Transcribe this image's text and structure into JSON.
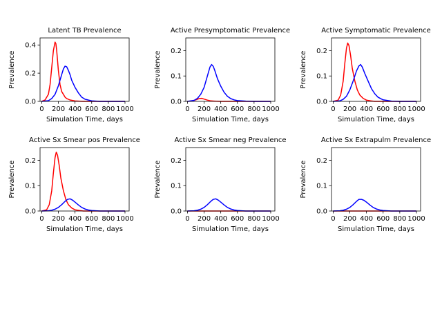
{
  "figure": {
    "background": "#ffffff"
  },
  "chart_data": [
    {
      "type": "line",
      "title": "Latent TB Prevalence",
      "xlabel": "Simulation Time, days",
      "ylabel": "Prevalence",
      "xlim": [
        -20,
        1050
      ],
      "ylim": [
        0,
        0.45
      ],
      "xticks": [
        0,
        200,
        400,
        600,
        800,
        1000
      ],
      "xtick_labels": [
        "0",
        "200",
        "400",
        "600",
        "800",
        "1000"
      ],
      "yticks": [
        0.0,
        0.2,
        0.4
      ],
      "ytick_labels": [
        "0.0",
        "0.2",
        "0.4"
      ],
      "grid": false,
      "series": [
        {
          "color": "#ff0000",
          "x": [
            0,
            40,
            80,
            100,
            120,
            140,
            160,
            170,
            180,
            200,
            220,
            240,
            260,
            280,
            300,
            340,
            400,
            500,
            600,
            800,
            1000
          ],
          "y": [
            0,
            0.01,
            0.05,
            0.12,
            0.24,
            0.36,
            0.42,
            0.41,
            0.36,
            0.22,
            0.12,
            0.07,
            0.05,
            0.03,
            0.02,
            0.01,
            0.003,
            0,
            0,
            0,
            0
          ]
        },
        {
          "color": "#0000ff",
          "x": [
            0,
            80,
            120,
            160,
            200,
            220,
            240,
            260,
            280,
            300,
            320,
            340,
            360,
            400,
            440,
            480,
            520,
            600,
            700,
            800,
            1000
          ],
          "y": [
            0,
            0.005,
            0.02,
            0.05,
            0.11,
            0.15,
            0.19,
            0.23,
            0.25,
            0.245,
            0.22,
            0.19,
            0.15,
            0.1,
            0.06,
            0.03,
            0.015,
            0.004,
            0,
            0,
            0
          ]
        }
      ]
    },
    {
      "type": "line",
      "title": "Active Presymptomatic Prevalence",
      "xlabel": "Simulation Time, days",
      "ylabel": "Prevalence",
      "xlim": [
        -20,
        1050
      ],
      "ylim": [
        0,
        0.25
      ],
      "xticks": [
        0,
        200,
        400,
        600,
        800,
        1000
      ],
      "xtick_labels": [
        "0",
        "200",
        "400",
        "600",
        "800",
        "1000"
      ],
      "yticks": [
        0.0,
        0.1,
        0.2
      ],
      "ytick_labels": [
        "0.0",
        "0.1",
        "0.2"
      ],
      "grid": false,
      "series": [
        {
          "color": "#ff0000",
          "x": [
            0,
            60,
            100,
            140,
            170,
            200,
            240,
            280,
            320,
            400,
            1000
          ],
          "y": [
            0,
            0.002,
            0.006,
            0.011,
            0.012,
            0.009,
            0.005,
            0.002,
            0.001,
            0,
            0
          ]
        },
        {
          "color": "#0000ff",
          "x": [
            0,
            80,
            120,
            160,
            200,
            240,
            270,
            290,
            310,
            330,
            360,
            400,
            440,
            480,
            520,
            560,
            600,
            700,
            800,
            1000
          ],
          "y": [
            0,
            0.004,
            0.012,
            0.028,
            0.055,
            0.1,
            0.135,
            0.145,
            0.138,
            0.12,
            0.09,
            0.06,
            0.036,
            0.02,
            0.011,
            0.006,
            0.003,
            0.001,
            0,
            0
          ]
        }
      ]
    },
    {
      "type": "line",
      "title": "Active Symptomatic Prevalence",
      "xlabel": "Simulation Time, days",
      "ylabel": "Prevalence",
      "xlim": [
        -20,
        1050
      ],
      "ylim": [
        0,
        0.25
      ],
      "xticks": [
        0,
        200,
        400,
        600,
        800,
        1000
      ],
      "xtick_labels": [
        "0",
        "200",
        "400",
        "600",
        "800",
        "1000"
      ],
      "yticks": [
        0.0,
        0.1,
        0.2
      ],
      "ytick_labels": [
        "0.0",
        "0.1",
        "0.2"
      ],
      "grid": false,
      "series": [
        {
          "color": "#ff0000",
          "x": [
            0,
            60,
            90,
            120,
            140,
            160,
            175,
            190,
            210,
            230,
            260,
            290,
            320,
            360,
            400,
            450,
            500,
            600,
            1000
          ],
          "y": [
            0,
            0.005,
            0.025,
            0.08,
            0.15,
            0.21,
            0.23,
            0.22,
            0.18,
            0.13,
            0.08,
            0.045,
            0.025,
            0.012,
            0.005,
            0.002,
            0,
            0,
            0
          ]
        },
        {
          "color": "#0000ff",
          "x": [
            0,
            80,
            120,
            160,
            200,
            240,
            280,
            310,
            330,
            350,
            380,
            420,
            460,
            500,
            540,
            600,
            700,
            800,
            1000
          ],
          "y": [
            0,
            0.002,
            0.008,
            0.02,
            0.045,
            0.08,
            0.12,
            0.14,
            0.145,
            0.135,
            0.11,
            0.08,
            0.05,
            0.03,
            0.016,
            0.006,
            0.001,
            0,
            0
          ]
        }
      ]
    },
    {
      "type": "line",
      "title": "Active Sx Smear pos Prevalence",
      "xlabel": "Simulation Time, days",
      "ylabel": "Prevalence",
      "xlim": [
        -20,
        1050
      ],
      "ylim": [
        0,
        0.25
      ],
      "xticks": [
        0,
        200,
        400,
        600,
        800,
        1000
      ],
      "xtick_labels": [
        "0",
        "200",
        "400",
        "600",
        "800",
        "1000"
      ],
      "yticks": [
        0.0,
        0.1,
        0.2
      ],
      "ytick_labels": [
        "0.0",
        "0.1",
        "0.2"
      ],
      "grid": false,
      "series": [
        {
          "color": "#ff0000",
          "x": [
            0,
            60,
            90,
            120,
            140,
            160,
            175,
            190,
            210,
            230,
            260,
            290,
            320,
            360,
            400,
            450,
            500,
            600,
            1000
          ],
          "y": [
            0,
            0.005,
            0.025,
            0.08,
            0.15,
            0.21,
            0.232,
            0.22,
            0.18,
            0.13,
            0.08,
            0.045,
            0.025,
            0.012,
            0.005,
            0.002,
            0,
            0,
            0
          ]
        },
        {
          "color": "#0000ff",
          "x": [
            0,
            80,
            120,
            160,
            200,
            240,
            280,
            310,
            340,
            370,
            400,
            440,
            480,
            520,
            560,
            600,
            700,
            800,
            1000
          ],
          "y": [
            0,
            0.001,
            0.003,
            0.007,
            0.014,
            0.025,
            0.038,
            0.046,
            0.048,
            0.043,
            0.035,
            0.024,
            0.014,
            0.008,
            0.004,
            0.002,
            0,
            0,
            0
          ]
        }
      ]
    },
    {
      "type": "line",
      "title": "Active Sx Smear neg Prevalence",
      "xlabel": "Simulation Time, days",
      "ylabel": "Prevalence",
      "xlim": [
        -20,
        1050
      ],
      "ylim": [
        0,
        0.25
      ],
      "xticks": [
        0,
        200,
        400,
        600,
        800,
        1000
      ],
      "xtick_labels": [
        "0",
        "200",
        "400",
        "600",
        "800",
        "1000"
      ],
      "yticks": [
        0.0,
        0.1,
        0.2
      ],
      "ytick_labels": [
        "0.0",
        "0.1",
        "0.2"
      ],
      "grid": false,
      "series": [
        {
          "color": "#ff0000",
          "x": [
            0,
            1000
          ],
          "y": [
            0,
            0
          ]
        },
        {
          "color": "#0000ff",
          "x": [
            0,
            80,
            120,
            160,
            200,
            240,
            280,
            310,
            340,
            370,
            400,
            440,
            480,
            520,
            560,
            600,
            700,
            800,
            1000
          ],
          "y": [
            0,
            0.001,
            0.003,
            0.007,
            0.014,
            0.025,
            0.038,
            0.046,
            0.048,
            0.043,
            0.035,
            0.024,
            0.014,
            0.008,
            0.004,
            0.002,
            0,
            0,
            0
          ]
        }
      ]
    },
    {
      "type": "line",
      "title": "Active Sx Extrapulm Prevalence",
      "xlabel": "Simulation Time, days",
      "ylabel": "Prevalence",
      "xlim": [
        -20,
        1050
      ],
      "ylim": [
        0,
        0.25
      ],
      "xticks": [
        0,
        200,
        400,
        600,
        800,
        1000
      ],
      "xtick_labels": [
        "0",
        "200",
        "400",
        "600",
        "800",
        "1000"
      ],
      "yticks": [
        0.0,
        0.1,
        0.2
      ],
      "ytick_labels": [
        "0.0",
        "0.1",
        "0.2"
      ],
      "grid": false,
      "series": [
        {
          "color": "#ff0000",
          "x": [
            0,
            1000
          ],
          "y": [
            0,
            0
          ]
        },
        {
          "color": "#0000ff",
          "x": [
            0,
            80,
            120,
            160,
            200,
            240,
            280,
            310,
            340,
            370,
            400,
            440,
            480,
            520,
            560,
            600,
            700,
            800,
            1000
          ],
          "y": [
            0,
            0.001,
            0.003,
            0.007,
            0.014,
            0.025,
            0.038,
            0.046,
            0.046,
            0.042,
            0.035,
            0.024,
            0.014,
            0.008,
            0.004,
            0.002,
            0,
            0,
            0
          ]
        }
      ]
    }
  ]
}
